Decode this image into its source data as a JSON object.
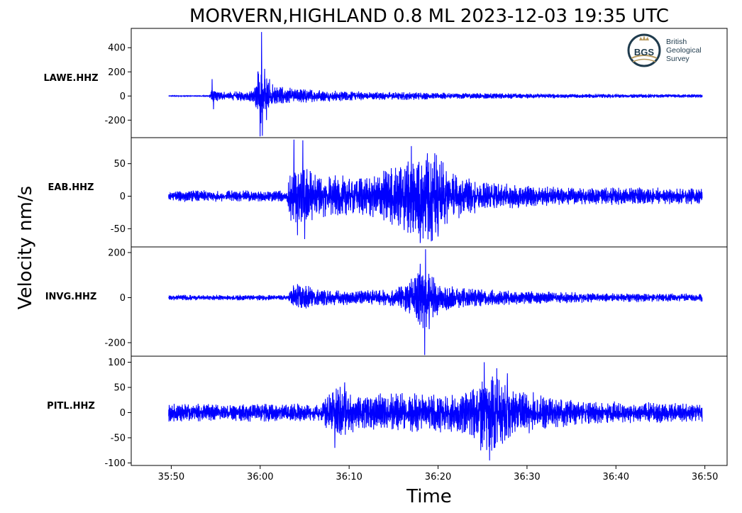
{
  "title": "MORVERN,HIGHLAND 0.8 ML   2023-12-03 19:35 UTC",
  "ylabel": "Velocity nm/s",
  "xlabel": "Time",
  "logo": {
    "mark_text": "BGS",
    "lines": [
      "British",
      "Geological",
      "Survey"
    ]
  },
  "chart_data": {
    "type": "line",
    "title": "MORVERN,HIGHLAND 0.8 ML   2023-12-03 19:35 UTC",
    "xlabel": "Time",
    "ylabel": "Velocity nm/s",
    "line_color": "#0000ff",
    "x_range": [
      "35:45.5",
      "36:52.5"
    ],
    "x_ticks": [
      "35:50",
      "36:00",
      "36:10",
      "36:20",
      "36:30",
      "36:40",
      "36:50"
    ],
    "x_tick_values": [
      0,
      10,
      20,
      30,
      40,
      50,
      60
    ],
    "x_tick_unit_note": "seconds after 35:50",
    "grid": false,
    "panels": [
      {
        "station": "LAWE.HHZ",
        "ylim": [
          -345,
          560
        ],
        "y_ticks": [
          400,
          200,
          0,
          -200
        ],
        "y_tick_labels": [
          "400",
          "200",
          "0",
          "-200"
        ],
        "trace_start": -0.3,
        "trace_end": 59.7,
        "noise": 3,
        "envelope": [
          [
            -0.3,
            0
          ],
          [
            4.2,
            0
          ],
          [
            4.5,
            45
          ],
          [
            5.5,
            30
          ],
          [
            7,
            30
          ],
          [
            9,
            40
          ],
          [
            9.5,
            120
          ],
          [
            10.1,
            230
          ],
          [
            11,
            90
          ],
          [
            13,
            60
          ],
          [
            17,
            40
          ],
          [
            22,
            30
          ],
          [
            30,
            22
          ],
          [
            40,
            16
          ],
          [
            50,
            12
          ],
          [
            59.7,
            10
          ]
        ],
        "peaks": [
          [
            4.6,
            140
          ],
          [
            4.75,
            -110
          ],
          [
            9.75,
            200
          ],
          [
            10.0,
            -335
          ],
          [
            10.15,
            530
          ],
          [
            10.25,
            -330
          ],
          [
            10.5,
            225
          ],
          [
            10.7,
            -200
          ],
          [
            11.05,
            140
          ]
        ]
      },
      {
        "station": "EAB.HHZ",
        "ylim": [
          -78,
          90
        ],
        "y_ticks": [
          50,
          0,
          -50
        ],
        "y_tick_labels": [
          "50",
          "0",
          "-50"
        ],
        "trace_start": -0.3,
        "trace_end": 59.7,
        "noise": 3,
        "envelope": [
          [
            -0.3,
            5
          ],
          [
            13,
            5
          ],
          [
            13.4,
            32
          ],
          [
            14.5,
            45
          ],
          [
            16,
            30
          ],
          [
            19,
            25
          ],
          [
            22,
            25
          ],
          [
            24.5,
            35
          ],
          [
            27,
            50
          ],
          [
            28.8,
            65
          ],
          [
            30.5,
            45
          ],
          [
            32,
            28
          ],
          [
            35,
            18
          ],
          [
            40,
            12
          ],
          [
            45,
            9
          ],
          [
            50,
            9
          ],
          [
            59.7,
            8
          ]
        ],
        "peaks": [
          [
            13.8,
            87
          ],
          [
            14.0,
            -40
          ],
          [
            14.8,
            86
          ],
          [
            15.0,
            -66
          ],
          [
            14.2,
            -60
          ],
          [
            27.0,
            77
          ],
          [
            27.2,
            -55
          ],
          [
            28.8,
            66
          ],
          [
            28.0,
            -72
          ],
          [
            26.2,
            -52
          ],
          [
            30.0,
            -62
          ]
        ]
      },
      {
        "station": "INVG.HHZ",
        "ylim": [
          -260,
          225
        ],
        "y_ticks": [
          200,
          0,
          -200
        ],
        "y_tick_labels": [
          "200",
          "0",
          "-200"
        ],
        "trace_start": -0.3,
        "trace_end": 59.7,
        "noise": 6,
        "envelope": [
          [
            -0.3,
            5
          ],
          [
            13.2,
            5
          ],
          [
            13.6,
            50
          ],
          [
            15,
            45
          ],
          [
            17,
            25
          ],
          [
            21,
            22
          ],
          [
            25,
            30
          ],
          [
            27,
            70
          ],
          [
            28.3,
            130
          ],
          [
            29.3,
            80
          ],
          [
            31,
            45
          ],
          [
            34,
            30
          ],
          [
            38,
            22
          ],
          [
            45,
            16
          ],
          [
            52,
            12
          ],
          [
            59.7,
            10
          ]
        ],
        "peaks": [
          [
            14.2,
            60
          ],
          [
            14.6,
            -45
          ],
          [
            28.0,
            150
          ],
          [
            28.6,
            215
          ],
          [
            28.5,
            -255
          ],
          [
            29.0,
            -140
          ],
          [
            27.6,
            -90
          ],
          [
            29.5,
            90
          ]
        ]
      },
      {
        "station": "PITL.HHZ",
        "ylim": [
          -105,
          112
        ],
        "y_ticks": [
          100,
          50,
          0,
          -50,
          -100
        ],
        "y_tick_labels": [
          "100",
          "50",
          "0",
          "-50",
          "-100"
        ],
        "trace_start": -0.3,
        "trace_end": 59.7,
        "noise": 4,
        "envelope": [
          [
            -0.3,
            12
          ],
          [
            17,
            12
          ],
          [
            17.5,
            30
          ],
          [
            19,
            45
          ],
          [
            21,
            25
          ],
          [
            24,
            30
          ],
          [
            28,
            30
          ],
          [
            33,
            32
          ],
          [
            34.5,
            55
          ],
          [
            35.6,
            75
          ],
          [
            37,
            55
          ],
          [
            38.5,
            40
          ],
          [
            42,
            28
          ],
          [
            48,
            16
          ],
          [
            55,
            14
          ],
          [
            59.7,
            12
          ]
        ],
        "peaks": [
          [
            18.4,
            -70
          ],
          [
            19.5,
            60
          ],
          [
            35.2,
            100
          ],
          [
            35.8,
            -95
          ],
          [
            36.6,
            88
          ],
          [
            36.3,
            -70
          ],
          [
            37.8,
            78
          ],
          [
            34.8,
            -75
          ]
        ]
      }
    ]
  }
}
